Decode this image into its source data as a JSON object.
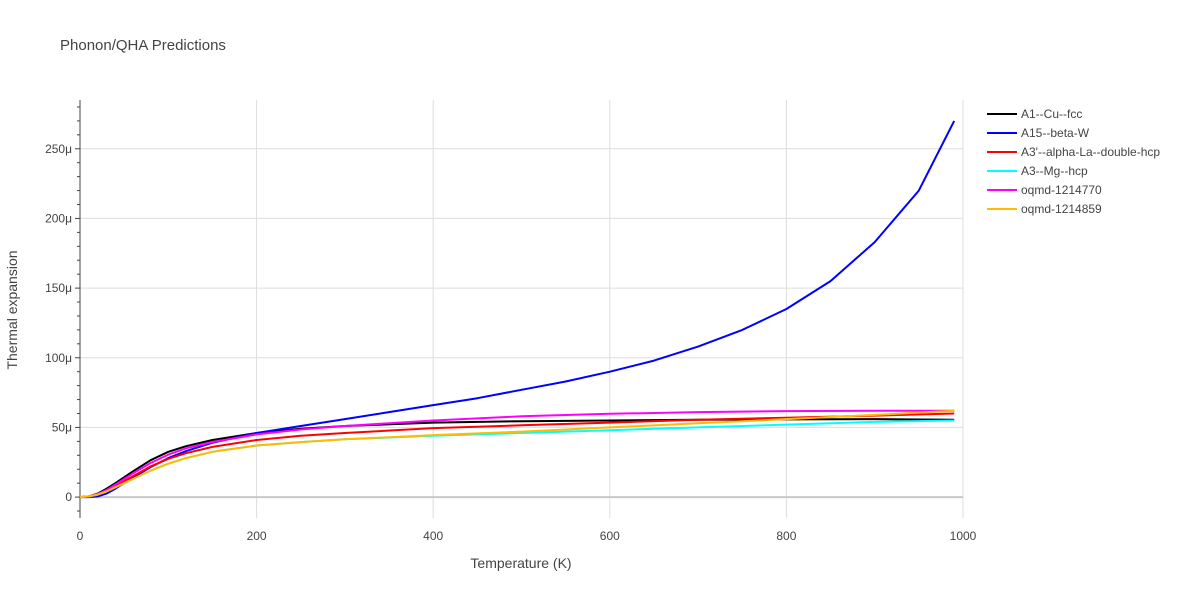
{
  "chart_data": {
    "type": "line",
    "title": "Phonon/QHA Predictions",
    "xlabel": "Temperature (K)",
    "ylabel": "Thermal expansion",
    "xlim": [
      0,
      1000
    ],
    "ylim": [
      -15,
      285
    ],
    "y_unit_suffix": "μ",
    "xticks": [
      0,
      200,
      400,
      600,
      800,
      1000
    ],
    "yticks": [
      0,
      50,
      100,
      150,
      200,
      250
    ],
    "grid": true,
    "legend_position": "right",
    "series": [
      {
        "name": "A1--Cu--fcc",
        "color": "#000000",
        "x": [
          0,
          10,
          20,
          30,
          40,
          60,
          80,
          100,
          120,
          150,
          200,
          250,
          300,
          400,
          500,
          600,
          700,
          800,
          900,
          990
        ],
        "y": [
          0,
          0.5,
          2.5,
          6,
          10,
          18.5,
          26.5,
          32.5,
          36.5,
          41,
          46,
          49,
          51,
          53.5,
          54.5,
          55,
          55.5,
          55.8,
          56,
          55.5
        ]
      },
      {
        "name": "A15--beta-W",
        "color": "#0000ff",
        "x": [
          0,
          10,
          20,
          30,
          40,
          60,
          80,
          100,
          120,
          150,
          200,
          250,
          300,
          350,
          400,
          450,
          500,
          550,
          600,
          650,
          700,
          750,
          800,
          850,
          900,
          950,
          990
        ],
        "y": [
          0,
          0,
          0.5,
          2.5,
          6,
          14,
          21.5,
          28,
          33,
          39,
          46,
          51,
          56,
          61,
          66,
          71,
          77,
          83,
          90,
          98,
          108,
          120,
          135,
          155,
          183,
          220,
          270
        ]
      },
      {
        "name": "A3'--alpha-La--double-hcp",
        "color": "#ff0000",
        "x": [
          0,
          10,
          20,
          30,
          40,
          60,
          80,
          100,
          120,
          150,
          200,
          250,
          300,
          400,
          500,
          600,
          700,
          800,
          900,
          990
        ],
        "y": [
          0,
          0.5,
          2,
          4.5,
          8,
          15,
          22,
          27.5,
          31.5,
          36,
          41,
          44,
          46,
          49.5,
          51.5,
          53.5,
          55.5,
          57,
          58.5,
          60
        ]
      },
      {
        "name": "A3--Mg--hcp",
        "color": "#00ffff",
        "x": [
          0,
          10,
          20,
          30,
          40,
          60,
          80,
          100,
          120,
          150,
          200,
          250,
          300,
          400,
          500,
          600,
          700,
          800,
          900,
          990
        ],
        "y": [
          0,
          0.5,
          1.8,
          4,
          7,
          13,
          19,
          24,
          28,
          32.5,
          37,
          39.5,
          41.5,
          44,
          46,
          48,
          50,
          52,
          54,
          55
        ]
      },
      {
        "name": "oqmd-1214770",
        "color": "#ff00ff",
        "x": [
          0,
          10,
          20,
          30,
          40,
          60,
          80,
          100,
          120,
          150,
          200,
          250,
          300,
          400,
          500,
          600,
          700,
          800,
          900,
          990
        ],
        "y": [
          0,
          0.5,
          2.2,
          5,
          9,
          17,
          24.5,
          30.5,
          35,
          39.5,
          45,
          48.5,
          51,
          55,
          58,
          59.8,
          61,
          61.7,
          62,
          62
        ]
      },
      {
        "name": "oqmd-1214859",
        "color": "#ffbb00",
        "x": [
          0,
          10,
          20,
          30,
          40,
          60,
          80,
          100,
          120,
          150,
          200,
          250,
          300,
          400,
          500,
          600,
          700,
          800,
          900,
          990
        ],
        "y": [
          0,
          0.5,
          1.8,
          4,
          7,
          13,
          19,
          24,
          28,
          32.5,
          37,
          39.5,
          41.5,
          44.5,
          47,
          50,
          53,
          56,
          59,
          62
        ]
      }
    ]
  }
}
